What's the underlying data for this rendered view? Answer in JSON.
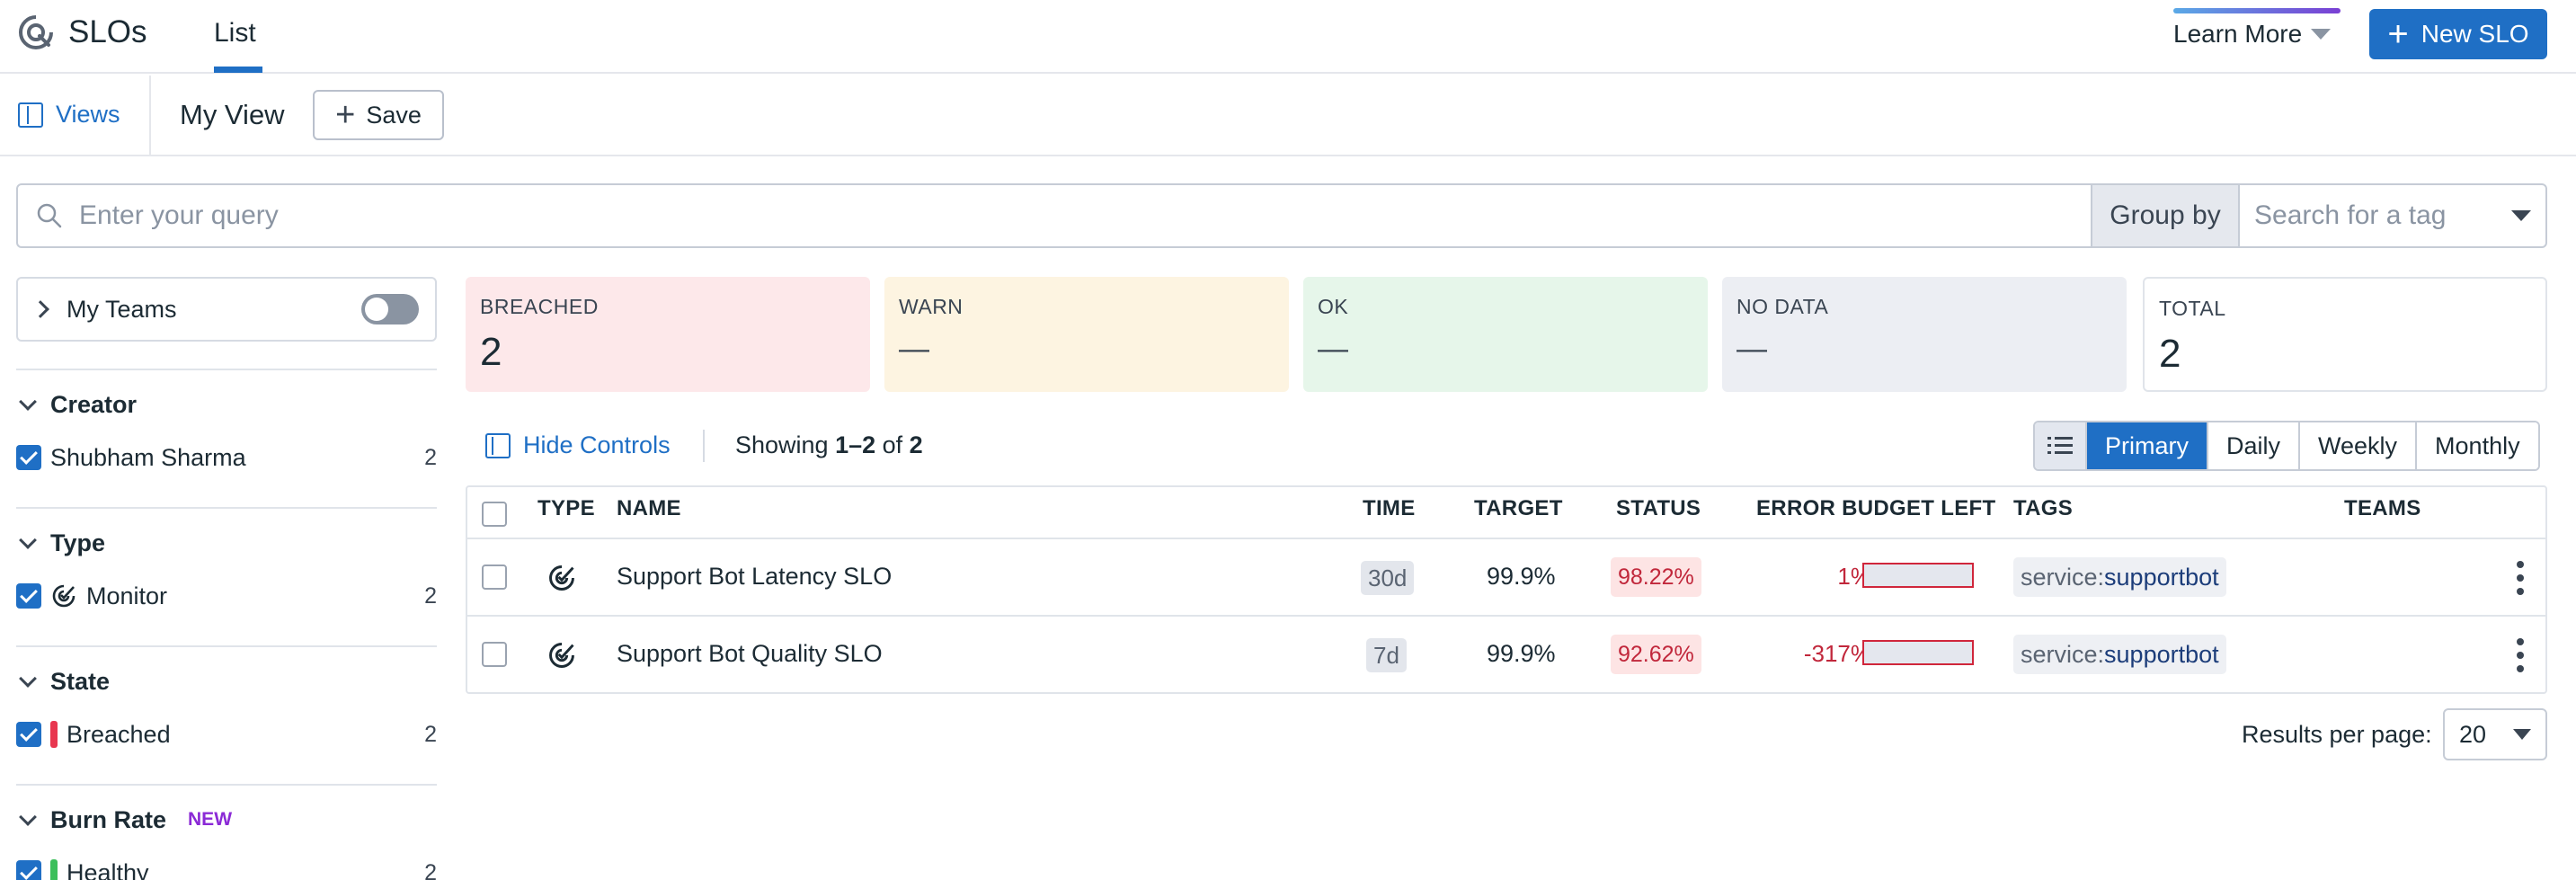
{
  "header": {
    "app_title": "SLOs",
    "tab_list": "List",
    "learn_more": "Learn More",
    "new_slo": "New SLO"
  },
  "views_bar": {
    "views_label": "Views",
    "current_view": "My View",
    "save_label": "Save"
  },
  "query": {
    "placeholder": "Enter your query",
    "group_by_label": "Group by",
    "tag_placeholder": "Search for a tag"
  },
  "sidebar": {
    "my_teams": "My Teams",
    "facets": [
      {
        "title": "Creator",
        "items": [
          {
            "label": "Shubham Sharma",
            "count": "2"
          }
        ]
      },
      {
        "title": "Type",
        "items": [
          {
            "label": "Monitor",
            "count": "2"
          }
        ]
      },
      {
        "title": "State",
        "items": [
          {
            "label": "Breached",
            "count": "2",
            "color": "#e8364f"
          }
        ]
      },
      {
        "title": "Burn Rate",
        "badge": "NEW",
        "items": [
          {
            "label": "Healthy",
            "count": "2",
            "color": "#3cbf5b"
          }
        ]
      }
    ]
  },
  "summary": {
    "breached": {
      "label": "BREACHED",
      "value": "2",
      "bg": "#fde8ea"
    },
    "warn": {
      "label": "WARN",
      "value": "—",
      "bg": "#fdf4e1"
    },
    "ok": {
      "label": "OK",
      "value": "—",
      "bg": "#e6f6ea"
    },
    "no_data": {
      "label": "NO DATA",
      "value": "—",
      "bg": "#eceef3"
    },
    "total": {
      "label": "TOTAL",
      "value": "2"
    }
  },
  "controls": {
    "hide_controls": "Hide Controls",
    "showing_prefix": "Showing ",
    "showing_range": "1–2",
    "showing_mid": " of ",
    "showing_total": "2",
    "view_tabs": [
      "Primary",
      "Daily",
      "Weekly",
      "Monthly"
    ],
    "active_tab": "Primary"
  },
  "table": {
    "columns": {
      "type": "TYPE",
      "name": "NAME",
      "time": "TIME",
      "target": "TARGET",
      "status": "STATUS",
      "error_budget": "ERROR BUDGET LEFT",
      "tags": "TAGS",
      "teams": "TEAMS"
    },
    "rows": [
      {
        "name": "Support Bot Latency SLO",
        "time": "30d",
        "target": "99.9%",
        "status": "98.22%",
        "error_budget": "1%",
        "tag_key": "service:",
        "tag_value": "supportbot"
      },
      {
        "name": "Support Bot Quality SLO",
        "time": "7d",
        "target": "99.9%",
        "status": "92.62%",
        "error_budget": "-317%",
        "tag_key": "service:",
        "tag_value": "supportbot"
      }
    ]
  },
  "pagination": {
    "results_label": "Results per page:",
    "per_page": "20"
  }
}
